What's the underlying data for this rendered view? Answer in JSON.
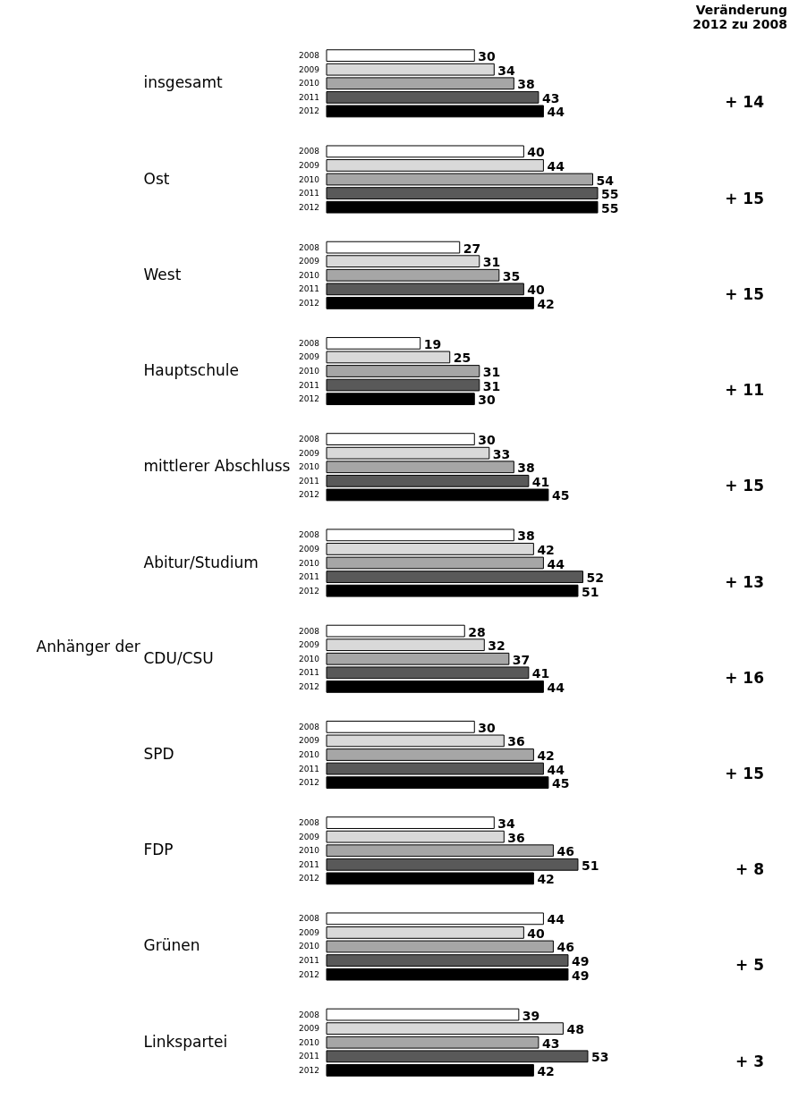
{
  "chart_data": {
    "type": "bar",
    "orientation": "horizontal",
    "ylabel": "Anhänger der",
    "data_labels": true,
    "categories": [
      "insgesamt",
      "Ost",
      "West",
      "Hauptschule",
      "mittlerer Abschluss",
      "Abitur/Studium",
      "CDU/CSU",
      "SPD",
      "FDP",
      "Grünen",
      "Linkspartei"
    ],
    "series": [
      {
        "name": "2008",
        "color": "#ffffff",
        "values": [
          30,
          40,
          27,
          19,
          30,
          38,
          28,
          30,
          34,
          44,
          39
        ]
      },
      {
        "name": "2009",
        "color": "#d9d9d9",
        "values": [
          34,
          44,
          31,
          25,
          33,
          42,
          32,
          36,
          36,
          40,
          48
        ]
      },
      {
        "name": "2010",
        "color": "#a6a6a6",
        "values": [
          38,
          54,
          35,
          31,
          38,
          44,
          37,
          42,
          46,
          46,
          43
        ]
      },
      {
        "name": "2011",
        "color": "#595959",
        "values": [
          43,
          55,
          40,
          31,
          41,
          52,
          41,
          44,
          51,
          49,
          53
        ]
      },
      {
        "name": "2012",
        "color": "#000000",
        "values": [
          44,
          55,
          42,
          30,
          45,
          51,
          44,
          45,
          42,
          49,
          42
        ]
      }
    ],
    "annotations": [
      "Veränderung\n2012 zu 2008",
      "+ 14",
      "+ 15",
      "+ 15",
      "+ 11",
      "+ 15",
      "+ 13",
      "+ 16",
      "+ 15",
      "+ 8",
      "+ 5",
      "+ 3"
    ]
  }
}
